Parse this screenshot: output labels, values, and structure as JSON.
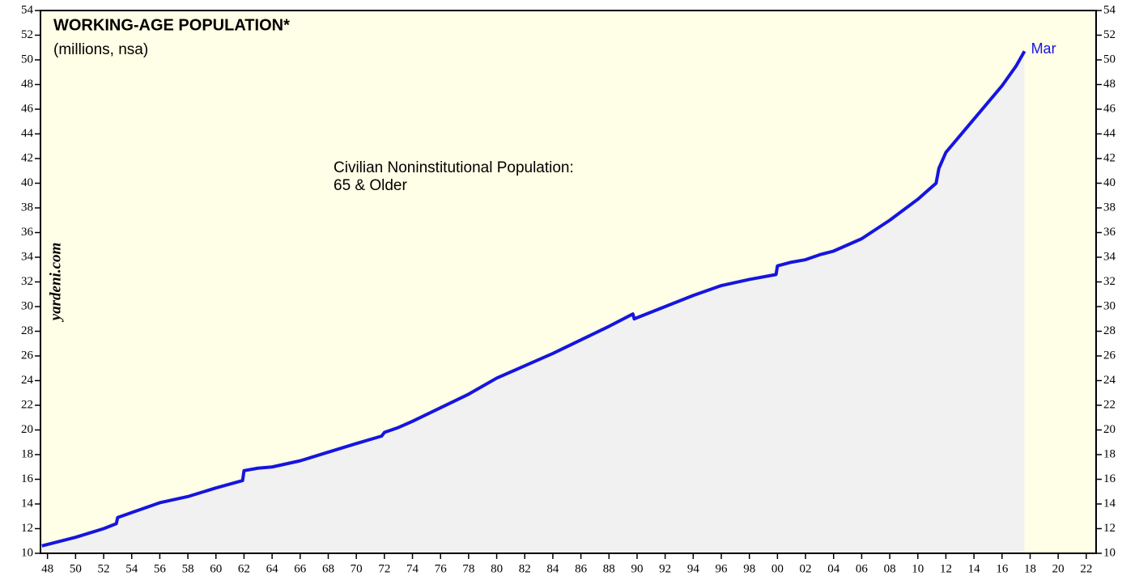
{
  "chart_data": {
    "type": "line",
    "title": "WORKING-AGE POPULATION*",
    "subtitle": "(millions, nsa)",
    "annotation": [
      "Civilian Noninstitutional Population:",
      "65 & Older"
    ],
    "watermark": "yardeni.com",
    "end_label": "Mar",
    "color": "#1515e0",
    "area_color": "#f1f1f1",
    "background": "#fffee6",
    "x": [
      1947.6,
      1950,
      1952,
      1952.9,
      1953,
      1954,
      1956,
      1958,
      1960,
      1961.9,
      1962,
      1963,
      1964,
      1966,
      1968,
      1970,
      1971.8,
      1972,
      1973,
      1974,
      1976,
      1978,
      1980,
      1982,
      1984,
      1986,
      1988,
      1989.7,
      1989.8,
      1990,
      1992,
      1994,
      1996,
      1998,
      1999.9,
      2000,
      2001,
      2002,
      2003,
      2004,
      2006,
      2008,
      2010,
      2011.3,
      2011.5,
      2012,
      2014,
      2016,
      2017,
      2017.6
    ],
    "values": [
      10.6,
      11.3,
      12.0,
      12.4,
      12.9,
      13.3,
      14.1,
      14.6,
      15.3,
      15.9,
      16.7,
      16.9,
      17.0,
      17.5,
      18.2,
      18.9,
      19.5,
      19.8,
      20.2,
      20.7,
      21.8,
      22.9,
      24.2,
      25.2,
      26.2,
      27.3,
      28.4,
      29.4,
      29.0,
      29.1,
      30.0,
      30.9,
      31.7,
      32.2,
      32.6,
      33.3,
      33.6,
      33.8,
      34.2,
      34.5,
      35.5,
      37.0,
      38.7,
      40.0,
      41.2,
      42.5,
      45.2,
      47.9,
      49.5,
      50.7
    ],
    "xlim": [
      1947.5,
      2022.7
    ],
    "xticks": [
      {
        "value": 1948,
        "label": "48"
      },
      {
        "value": 1950,
        "label": "50"
      },
      {
        "value": 1952,
        "label": "52"
      },
      {
        "value": 1954,
        "label": "54"
      },
      {
        "value": 1956,
        "label": "56"
      },
      {
        "value": 1958,
        "label": "58"
      },
      {
        "value": 1960,
        "label": "60"
      },
      {
        "value": 1962,
        "label": "62"
      },
      {
        "value": 1964,
        "label": "64"
      },
      {
        "value": 1966,
        "label": "66"
      },
      {
        "value": 1968,
        "label": "68"
      },
      {
        "value": 1970,
        "label": "70"
      },
      {
        "value": 1972,
        "label": "72"
      },
      {
        "value": 1974,
        "label": "74"
      },
      {
        "value": 1976,
        "label": "76"
      },
      {
        "value": 1978,
        "label": "78"
      },
      {
        "value": 1980,
        "label": "80"
      },
      {
        "value": 1982,
        "label": "82"
      },
      {
        "value": 1984,
        "label": "84"
      },
      {
        "value": 1986,
        "label": "86"
      },
      {
        "value": 1988,
        "label": "88"
      },
      {
        "value": 1990,
        "label": "90"
      },
      {
        "value": 1992,
        "label": "92"
      },
      {
        "value": 1994,
        "label": "94"
      },
      {
        "value": 1996,
        "label": "96"
      },
      {
        "value": 1998,
        "label": "98"
      },
      {
        "value": 2000,
        "label": "00"
      },
      {
        "value": 2002,
        "label": "02"
      },
      {
        "value": 2004,
        "label": "04"
      },
      {
        "value": 2006,
        "label": "06"
      },
      {
        "value": 2008,
        "label": "08"
      },
      {
        "value": 2010,
        "label": "10"
      },
      {
        "value": 2012,
        "label": "12"
      },
      {
        "value": 2014,
        "label": "14"
      },
      {
        "value": 2016,
        "label": "16"
      },
      {
        "value": 2018,
        "label": "18"
      },
      {
        "value": 2020,
        "label": "20"
      },
      {
        "value": 2022,
        "label": "22"
      }
    ],
    "ylim": [
      10,
      54
    ],
    "yticks": [
      10,
      12,
      14,
      16,
      18,
      20,
      22,
      24,
      26,
      28,
      30,
      32,
      34,
      36,
      38,
      40,
      42,
      44,
      46,
      48,
      50,
      52,
      54
    ]
  }
}
